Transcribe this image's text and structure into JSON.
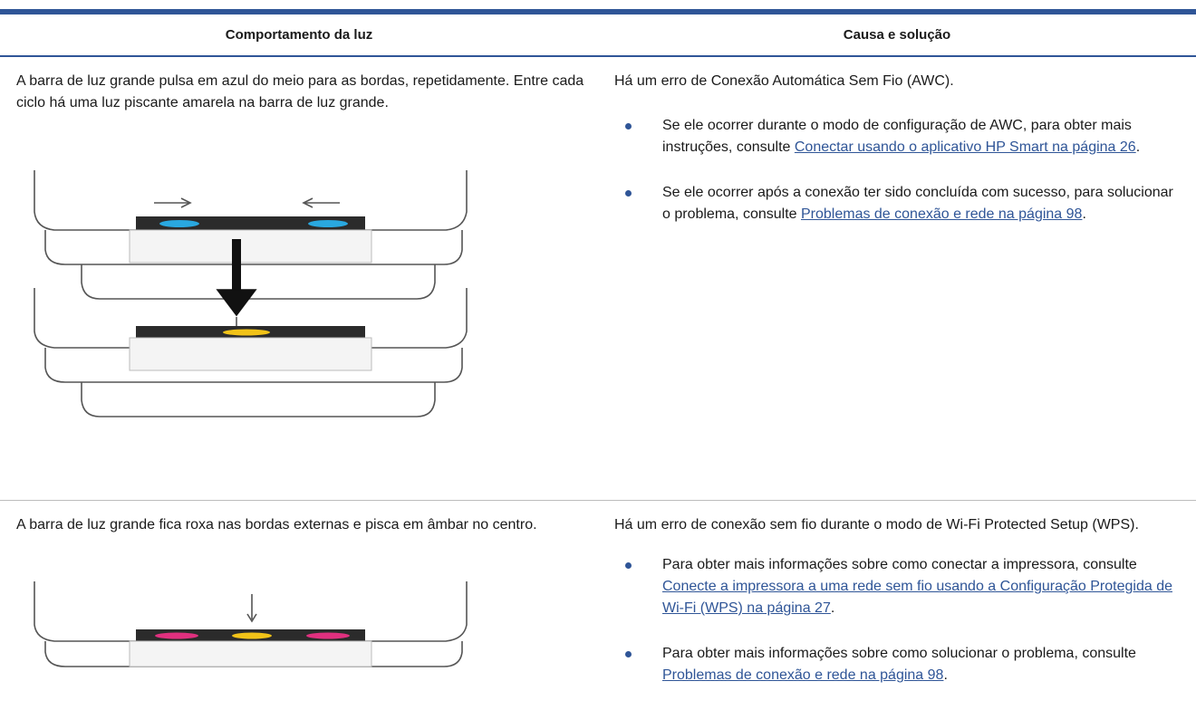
{
  "table": {
    "headers": [
      "Comportamento da luz",
      "Causa e solução"
    ],
    "rows": [
      {
        "behavior": "A barra de luz grande pulsa em azul do meio para as bordas, repetidamente. Entre cada ciclo há uma luz piscante amarela na barra de luz grande.",
        "cause": "Há um erro de Conexão Automática Sem Fio (AWC).",
        "bullets": [
          {
            "text": "Se ele ocorrer durante o modo de configuração de AWC, para obter mais instruções, consulte ",
            "link": "Conectar usando o aplicativo HP Smart na página 26",
            "end": "."
          },
          {
            "text": "Se ele ocorrer após a conexão ter sido concluída com sucesso, para solucionar o problema, consulte ",
            "link": "Problemas de conexão e rede na página 98",
            "end": "."
          }
        ]
      },
      {
        "behavior": "A barra de luz grande fica roxa nas bordas externas e pisca em âmbar no centro.",
        "cause": "Há um erro de conexão sem fio durante o modo de Wi-Fi Protected Setup (WPS).",
        "bullets": [
          {
            "text": "Para obter mais informações sobre como conectar a impressora, consulte ",
            "link": "Conecte a impressora a uma rede sem fio usando a Configuração Protegida de Wi-Fi (WPS) na página 27",
            "end": "."
          },
          {
            "text": "Para obter mais informações sobre como solucionar o problema, consulte ",
            "link": "Problemas de conexão e rede na página 98",
            "end": "."
          }
        ]
      }
    ]
  }
}
